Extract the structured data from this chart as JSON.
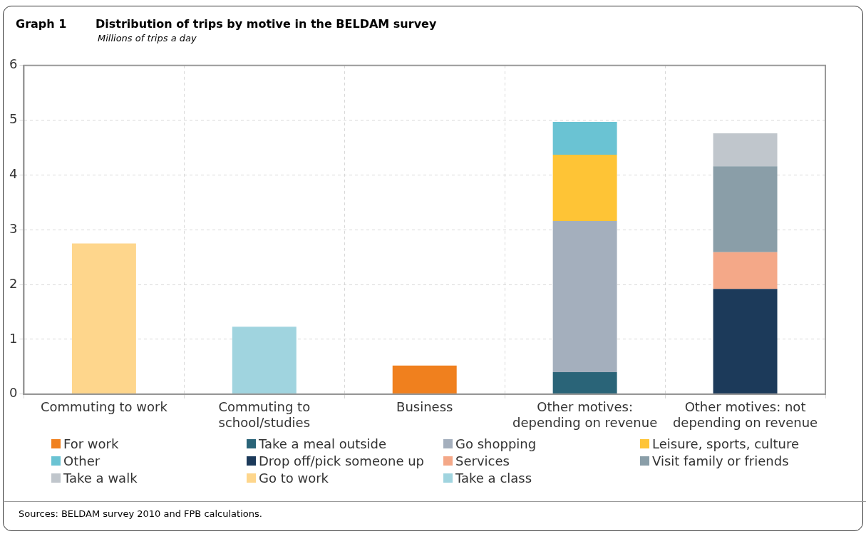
{
  "chart_data": {
    "type": "bar",
    "title": "Distribution of trips by motive in the BELDAM survey",
    "subtitle": "Millions of trips a day",
    "annotations": [
      "Graph 1",
      "Sources: BELDAM survey 2010 and FPB calculations."
    ],
    "categories": [
      "Commuting to work",
      "Commuting to school/studies",
      "Business",
      "Other motives: depending on revenue",
      "Other motives: not depending on revenue"
    ],
    "stacked": true,
    "ylim": [
      0,
      6
    ],
    "yticks": [
      0,
      1,
      2,
      3,
      4,
      5,
      6
    ],
    "grid": true,
    "legend": "bottom",
    "series": [
      {
        "name": "For work",
        "color": "#f0801e",
        "values": [
          null,
          null,
          0.52,
          null,
          null
        ]
      },
      {
        "name": "Take a meal outside",
        "color": "#2a6478",
        "values": [
          null,
          null,
          null,
          0.4,
          null
        ]
      },
      {
        "name": "Go shopping",
        "color": "#a4afbd",
        "values": [
          null,
          null,
          null,
          2.76,
          null
        ]
      },
      {
        "name": "Leisure, sports, culture",
        "color": "#fec436",
        "values": [
          null,
          null,
          null,
          1.21,
          null
        ]
      },
      {
        "name": "Other",
        "color": "#6ac3d3",
        "values": [
          null,
          null,
          null,
          0.6,
          null
        ]
      },
      {
        "name": "Drop off/pick someone up",
        "color": "#1c3a5a",
        "values": [
          null,
          null,
          null,
          null,
          1.92
        ]
      },
      {
        "name": "Services",
        "color": "#f4a888",
        "values": [
          null,
          null,
          null,
          null,
          0.67
        ]
      },
      {
        "name": "Visit family or friends",
        "color": "#8a9ea8",
        "values": [
          null,
          null,
          null,
          null,
          1.57
        ]
      },
      {
        "name": "Take a walk",
        "color": "#c0c6cc",
        "values": [
          null,
          null,
          null,
          null,
          0.6
        ]
      },
      {
        "name": "Go to work",
        "color": "#fed68c",
        "values": [
          2.75,
          null,
          null,
          null,
          null
        ]
      },
      {
        "name": "Take a class",
        "color": "#a0d4df",
        "values": [
          null,
          1.23,
          null,
          null,
          null
        ]
      }
    ]
  }
}
